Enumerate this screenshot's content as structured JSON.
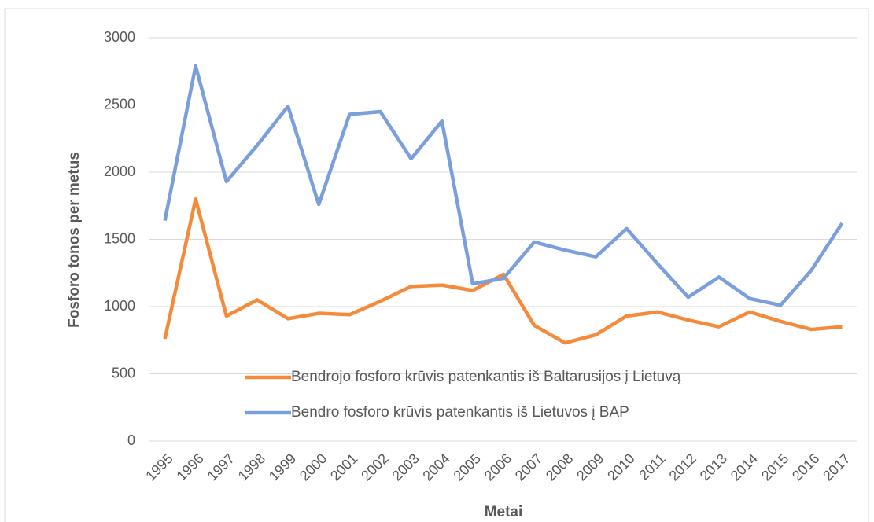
{
  "chart_data": {
    "type": "line",
    "y_label": "Fosforo tonos per metus",
    "x_label": "Metai",
    "categories": [
      "1995",
      "1996",
      "1997",
      "1998",
      "1999",
      "2000",
      "2001",
      "2002",
      "2003",
      "2004",
      "2005",
      "2006",
      "2007",
      "2008",
      "2009",
      "2010",
      "2011",
      "2012",
      "2013",
      "2014",
      "2015",
      "2016",
      "2017"
    ],
    "series": [
      {
        "name": "Bendrojo fosforo krūvis patenkantis iš Baltarusijos į Lietuvą",
        "color": "#f58a3b",
        "values": [
          760,
          1800,
          930,
          1050,
          910,
          950,
          940,
          1040,
          1150,
          1160,
          1120,
          1240,
          860,
          730,
          790,
          930,
          960,
          900,
          850,
          960,
          890,
          830,
          850
        ]
      },
      {
        "name": "Bendro fosforo krūvis patenkantis iš Lietuvos į BAP",
        "color": "#7b9fdc",
        "values": [
          1640,
          2790,
          1930,
          2200,
          2490,
          1760,
          2430,
          2450,
          2100,
          2380,
          1170,
          1210,
          1480,
          1420,
          1370,
          1580,
          1320,
          1070,
          1220,
          1060,
          1010,
          1270,
          1620
        ]
      }
    ],
    "ylim": [
      0,
      3000
    ],
    "yticks": [
      0,
      500,
      1000,
      1500,
      2000,
      2500,
      3000
    ],
    "grid": true,
    "legend": "lower-center"
  }
}
